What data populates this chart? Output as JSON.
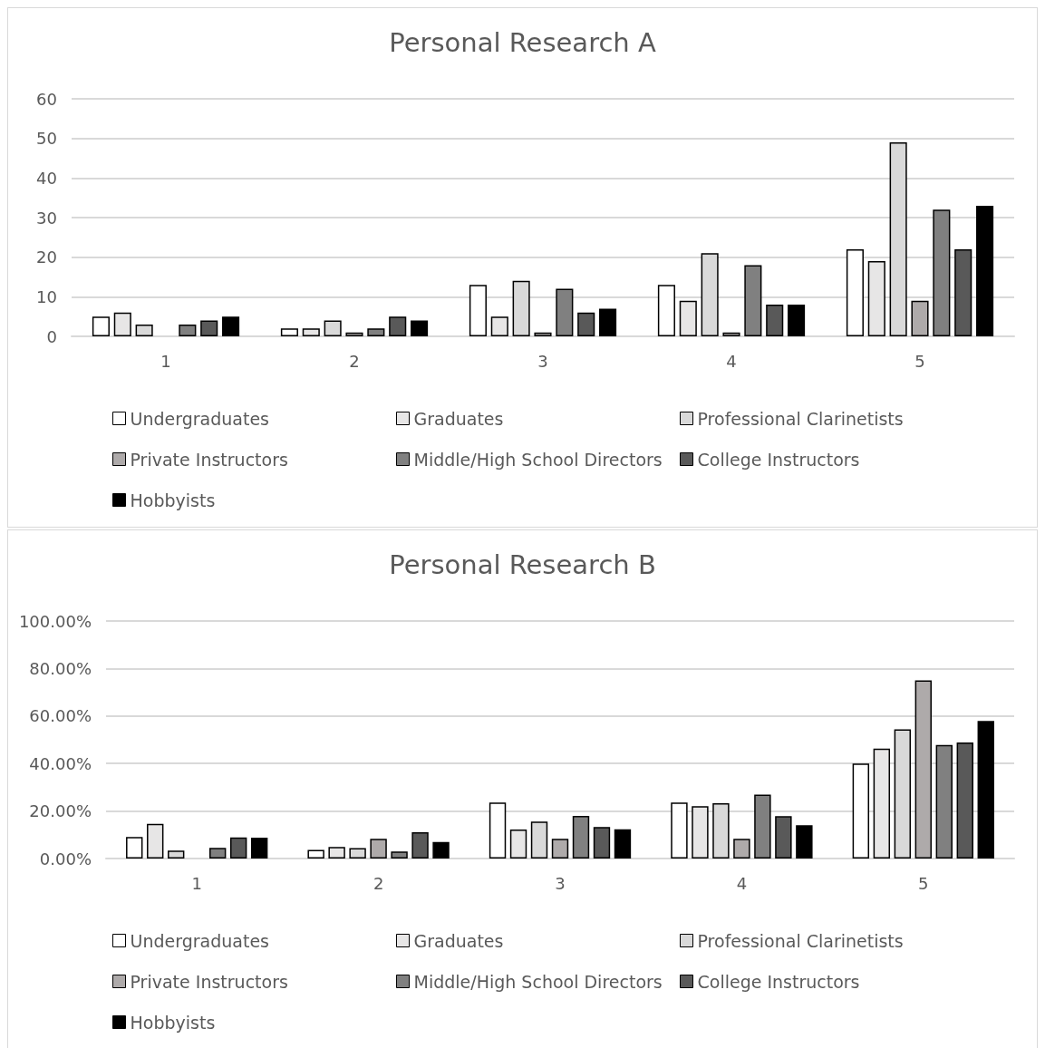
{
  "chart_data": [
    {
      "type": "bar",
      "title": "Personal Research A",
      "categories": [
        "1",
        "2",
        "3",
        "4",
        "5"
      ],
      "ylim": [
        0,
        60
      ],
      "yticks": [
        0,
        10,
        20,
        30,
        40,
        50,
        60
      ],
      "grid": "y",
      "legend": "bottom",
      "series": [
        {
          "name": "Undergraduates",
          "color": "#ffffff",
          "values": [
            5,
            2,
            13,
            13,
            22
          ]
        },
        {
          "name": "Graduates",
          "color": "#e7e6e6",
          "values": [
            6,
            2,
            5,
            9,
            19
          ]
        },
        {
          "name": "Professional Clarinetists",
          "color": "#d9d9d9",
          "values": [
            3,
            4,
            14,
            21,
            49
          ]
        },
        {
          "name": "Private Instructors",
          "color": "#aeaaaa",
          "values": [
            0,
            1,
            1,
            1,
            9
          ]
        },
        {
          "name": "Middle/High School Directors",
          "color": "#808080",
          "values": [
            3,
            2,
            12,
            18,
            32
          ]
        },
        {
          "name": "College Instructors",
          "color": "#595959",
          "values": [
            4,
            5,
            6,
            8,
            22
          ]
        },
        {
          "name": "Hobbyists",
          "color": "#000000",
          "values": [
            5,
            4,
            7,
            8,
            33
          ]
        }
      ]
    },
    {
      "type": "bar",
      "title": "Personal Research B",
      "categories": [
        "1",
        "2",
        "3",
        "4",
        "5"
      ],
      "ylim": [
        0,
        100
      ],
      "yticks": [
        {
          "value": 0,
          "label": "0.00%"
        },
        {
          "value": 20,
          "label": "20.00%"
        },
        {
          "value": 40,
          "label": "40.00%"
        },
        {
          "value": 60,
          "label": "60.00%"
        },
        {
          "value": 80,
          "label": "80.00%"
        },
        {
          "value": 100,
          "label": "100.00%"
        }
      ],
      "grid": "y",
      "legend": "bottom",
      "series": [
        {
          "name": "Undergraduates",
          "color": "#ffffff",
          "values": [
            9.1,
            3.6,
            23.6,
            23.6,
            40
          ]
        },
        {
          "name": "Graduates",
          "color": "#e7e6e6",
          "values": [
            14.6,
            4.9,
            12.2,
            22,
            46.3
          ]
        },
        {
          "name": "Professional Clarinetists",
          "color": "#d9d9d9",
          "values": [
            3.3,
            4.4,
            15.6,
            23.3,
            54.4
          ]
        },
        {
          "name": "Private Instructors",
          "color": "#aeaaaa",
          "values": [
            0,
            8.3,
            8.3,
            8.3,
            75
          ]
        },
        {
          "name": "Middle/High School Directors",
          "color": "#808080",
          "values": [
            4.5,
            3,
            17.9,
            26.9,
            47.8
          ]
        },
        {
          "name": "College Instructors",
          "color": "#595959",
          "values": [
            8.9,
            11.1,
            13.3,
            17.8,
            48.9
          ]
        },
        {
          "name": "Hobbyists",
          "color": "#000000",
          "values": [
            8.8,
            7,
            12.3,
            14,
            57.9
          ]
        }
      ]
    }
  ]
}
